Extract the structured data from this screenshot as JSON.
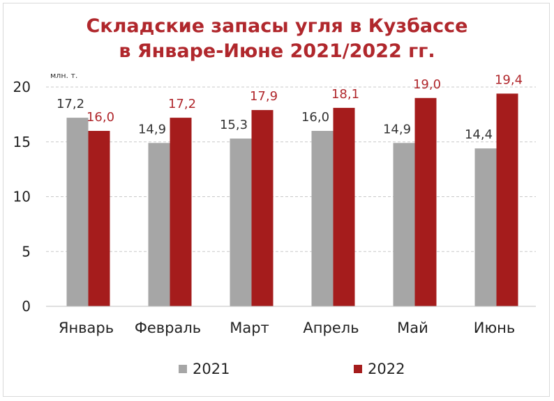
{
  "chart_data": {
    "type": "bar",
    "title_line1": "Складские запасы угля в Кузбассе",
    "title_line2": "в Январе-Июне 2021/2022 гг.",
    "unit": "млн. т.",
    "categories": [
      "Январь",
      "Февраль",
      "Март",
      "Апрель",
      "Май",
      "Июнь"
    ],
    "series": [
      {
        "name": "2021",
        "color": "#a6a6a6",
        "values": [
          17.2,
          14.9,
          15.3,
          16.0,
          14.9,
          14.4
        ],
        "labels": [
          "17,2",
          "14,9",
          "15,3",
          "16,0",
          "14,9",
          "14,4"
        ]
      },
      {
        "name": "2022",
        "color": "#a51c1c",
        "values": [
          16.0,
          17.2,
          17.9,
          18.1,
          19.0,
          19.4
        ],
        "labels": [
          "16,0",
          "17,2",
          "17,9",
          "18,1",
          "19,0",
          "19,4"
        ]
      }
    ],
    "ylim": [
      0,
      20
    ],
    "yticks": [
      "0",
      "5",
      "10",
      "15",
      "20"
    ],
    "grid": true,
    "legend_position": "bottom"
  }
}
